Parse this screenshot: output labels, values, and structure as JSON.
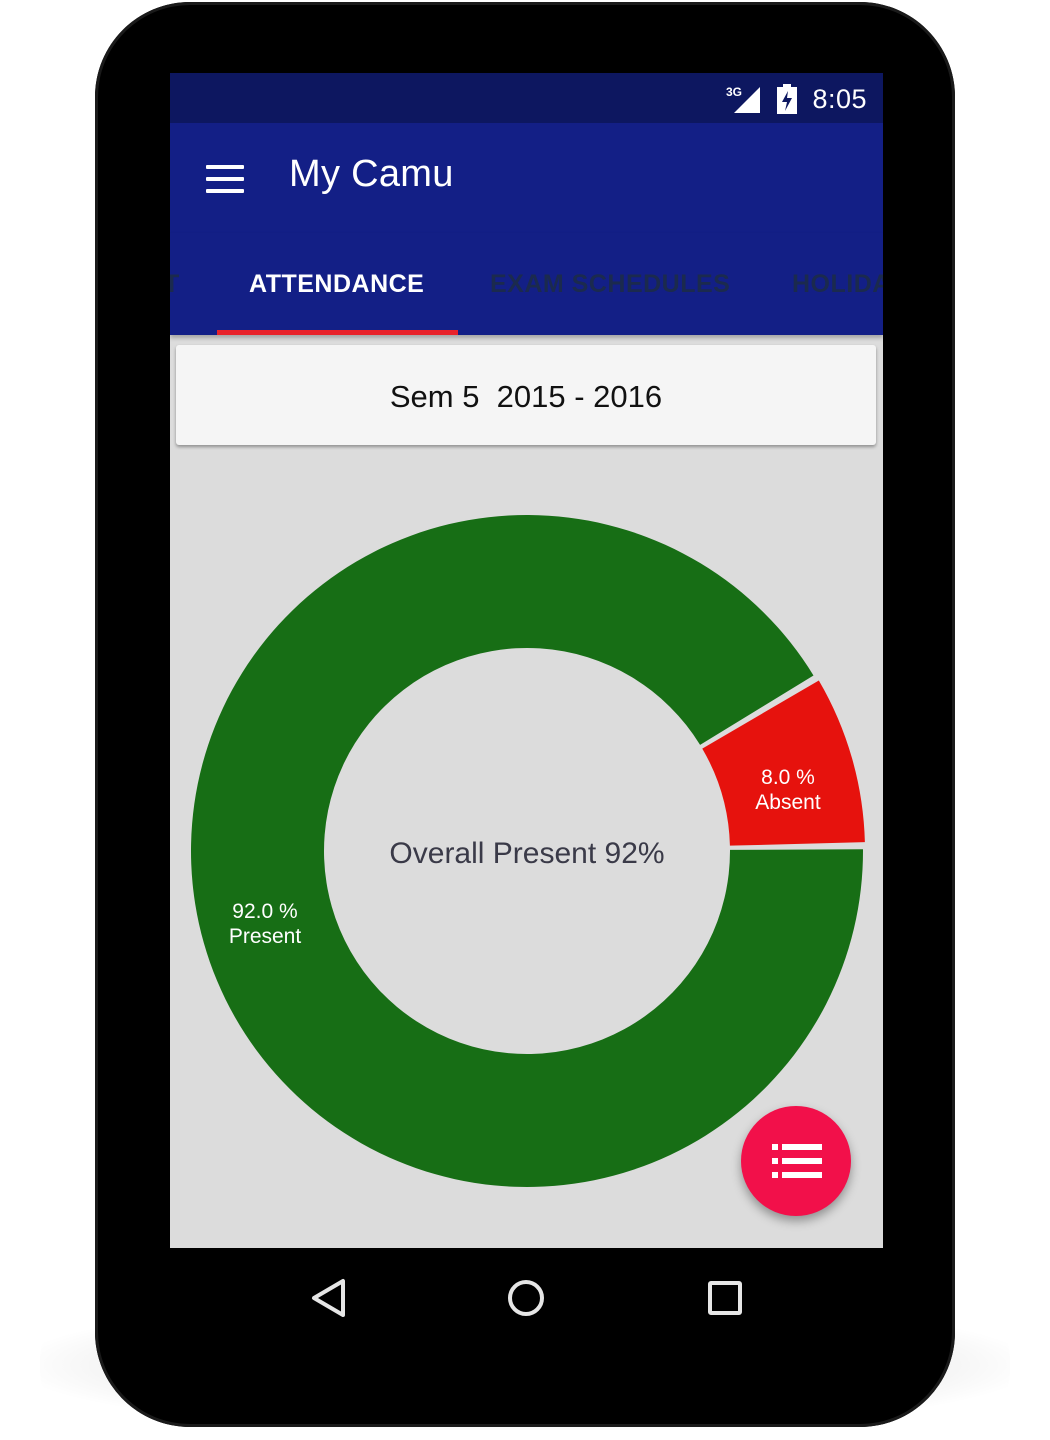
{
  "status_bar": {
    "network": "3G",
    "time": "8:05"
  },
  "app_bar": {
    "title": "My Camu",
    "menu_icon": "hamburger-menu-icon"
  },
  "tabs": [
    {
      "label": "T",
      "active": false
    },
    {
      "label": "ATTENDANCE",
      "active": true
    },
    {
      "label": "EXAM SCHEDULES",
      "active": false
    },
    {
      "label": "HOLIDA",
      "active": false
    }
  ],
  "semester": {
    "label": "Sem 5  2015 - 2016"
  },
  "chart_data": {
    "type": "pie",
    "donut": true,
    "center_label": "Overall Present 92%",
    "slices": [
      {
        "name": "Present",
        "value": 92.0,
        "label_value": "92.0 %",
        "label_name": "Present",
        "color": "#176e15"
      },
      {
        "name": "Absent",
        "value": 8.0,
        "label_value": "8.0 %",
        "label_name": "Absent",
        "color": "#e6120d"
      }
    ]
  },
  "fab": {
    "icon": "list-icon",
    "color": "#f2104a"
  },
  "nav": {
    "back_icon": "back-triangle-icon",
    "home_icon": "home-circle-icon",
    "recents_icon": "recents-square-icon"
  },
  "colors": {
    "status_bar": "#0d1760",
    "app_bar": "#131f86",
    "tab_indicator": "#e8222a",
    "screen_background": "#dcdcdc"
  }
}
